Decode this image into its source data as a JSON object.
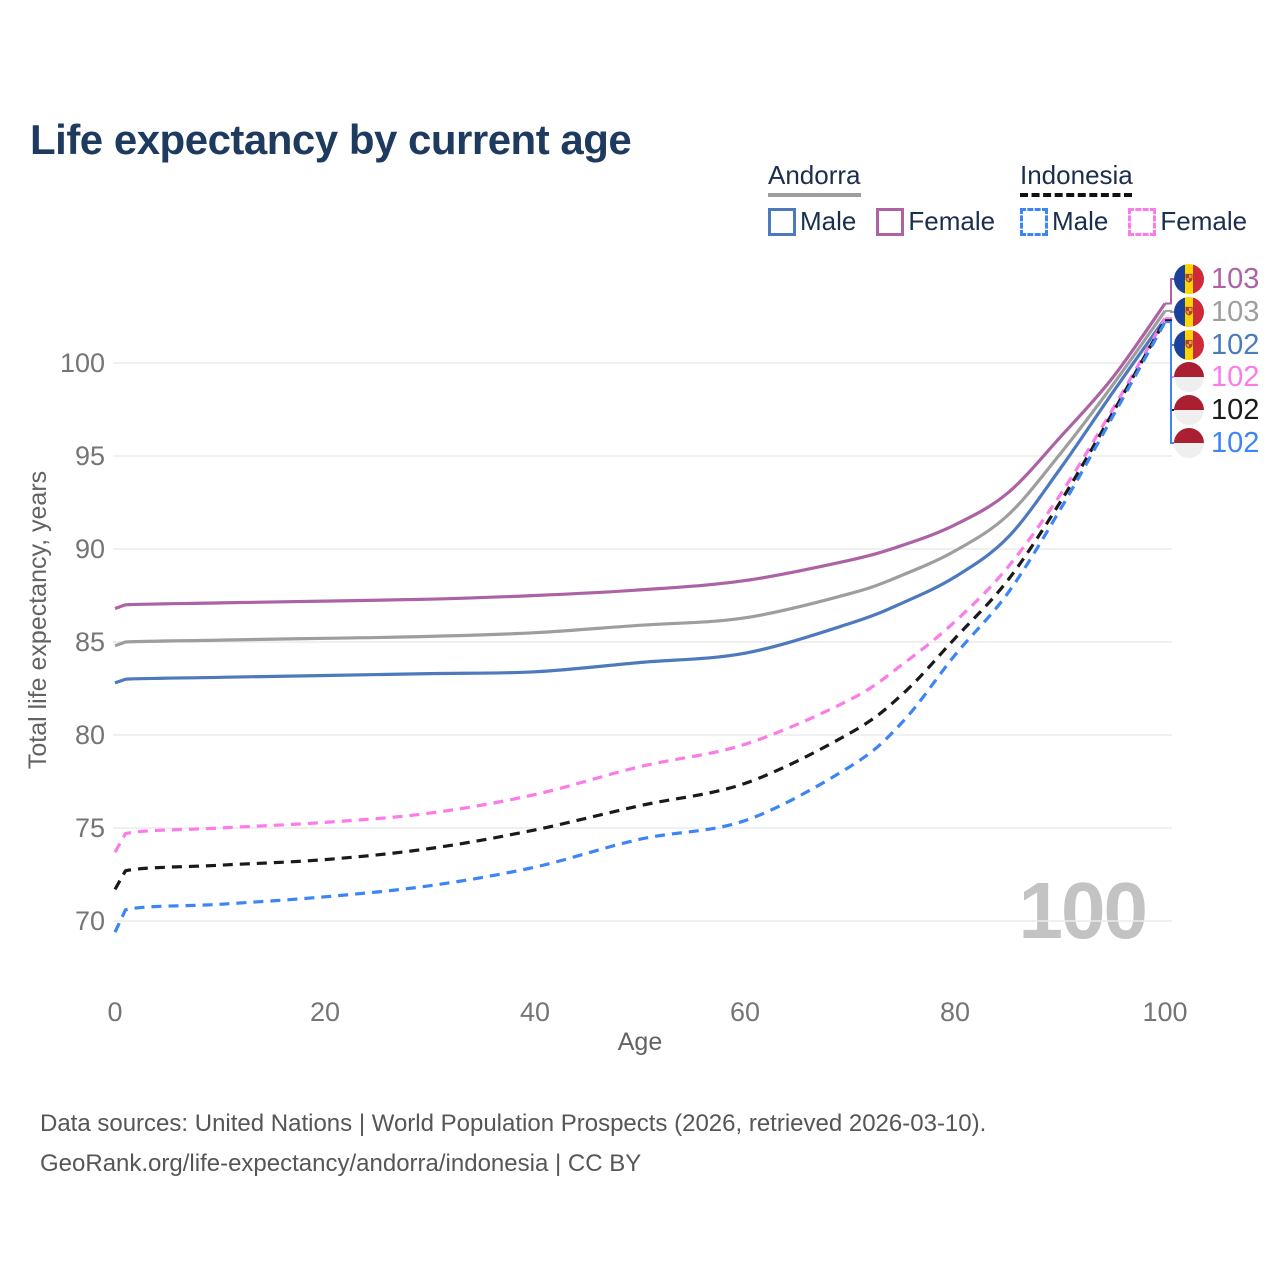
{
  "title": "Life expectancy by current age",
  "legend": {
    "groups": [
      {
        "country": "Andorra",
        "line_style": "solid",
        "underline_color": "#9e9e9e",
        "items": [
          {
            "label": "Male",
            "color": "#4d79bd"
          },
          {
            "label": "Female",
            "color": "#ac62a5"
          }
        ]
      },
      {
        "country": "Indonesia",
        "line_style": "dashed",
        "underline_color": "#111111",
        "items": [
          {
            "label": "Male",
            "color": "#3d85f6"
          },
          {
            "label": "Female",
            "color": "#fb7ce8"
          }
        ]
      }
    ]
  },
  "chart_data": {
    "type": "line",
    "title": "Life expectancy by current age",
    "xlabel": "Age",
    "ylabel": "Total life expectancy, years",
    "xlim": [
      0,
      100
    ],
    "ylim": [
      69,
      104
    ],
    "xticks": [
      0,
      20,
      40,
      60,
      80,
      100
    ],
    "yticks": [
      70,
      75,
      80,
      85,
      90,
      95,
      100
    ],
    "grid": true,
    "legend_position": "top-right",
    "watermark": "100",
    "x": [
      0,
      1,
      10,
      20,
      30,
      40,
      50,
      60,
      70,
      75,
      80,
      85,
      90,
      95,
      100
    ],
    "series": [
      {
        "name": "Andorra Female",
        "country": "Andorra",
        "sex": "Female",
        "color": "#ac62a5",
        "dashed": false,
        "values": [
          86.8,
          87.0,
          87.1,
          87.2,
          87.3,
          87.5,
          87.8,
          88.3,
          89.4,
          90.2,
          91.3,
          93.0,
          96.0,
          99.2,
          103.2
        ],
        "end_label": "103"
      },
      {
        "name": "Andorra Both sexes",
        "country": "Andorra",
        "sex": "Both sexes",
        "color": "#9e9e9e",
        "dashed": false,
        "values": [
          84.8,
          85.0,
          85.1,
          85.2,
          85.3,
          85.5,
          85.9,
          86.3,
          87.6,
          88.6,
          89.9,
          91.8,
          95.1,
          98.8,
          102.8
        ],
        "end_label": "103"
      },
      {
        "name": "Andorra Male",
        "country": "Andorra",
        "sex": "Male",
        "color": "#4d79bd",
        "dashed": false,
        "values": [
          82.8,
          83.0,
          83.1,
          83.2,
          83.3,
          83.4,
          83.9,
          84.4,
          86.0,
          87.1,
          88.5,
          90.6,
          94.3,
          98.4,
          102.4
        ],
        "end_label": "102"
      },
      {
        "name": "Indonesia Female",
        "country": "Indonesia",
        "sex": "Female",
        "color": "#fb7ce8",
        "dashed": true,
        "values": [
          73.7,
          74.7,
          75.0,
          75.3,
          75.8,
          76.8,
          78.3,
          79.5,
          81.9,
          83.8,
          86.1,
          89.0,
          92.9,
          97.5,
          102.4
        ],
        "end_label": "102"
      },
      {
        "name": "Indonesia Both sexes",
        "country": "Indonesia",
        "sex": "Both sexes",
        "color": "#1a1a1a",
        "dashed": true,
        "values": [
          71.7,
          72.7,
          73.0,
          73.3,
          73.9,
          74.9,
          76.2,
          77.4,
          80.1,
          82.2,
          85.2,
          88.3,
          92.5,
          97.3,
          102.3
        ],
        "end_label": "102"
      },
      {
        "name": "Indonesia Male",
        "country": "Indonesia",
        "sex": "Male",
        "color": "#3d85f6",
        "dashed": true,
        "values": [
          69.4,
          70.6,
          70.9,
          71.3,
          71.9,
          72.9,
          74.4,
          75.4,
          78.3,
          80.7,
          84.3,
          87.6,
          92.1,
          97.1,
          102.2
        ],
        "end_label": "102"
      }
    ],
    "end_labels": [
      {
        "value": "103",
        "color": "#ac62a5",
        "flag": "andorra"
      },
      {
        "value": "103",
        "color": "#9e9e9e",
        "flag": "andorra"
      },
      {
        "value": "102",
        "color": "#4d79bd",
        "flag": "andorra"
      },
      {
        "value": "102",
        "color": "#fb7ce8",
        "flag": "indonesia"
      },
      {
        "value": "102",
        "color": "#1a1a1a",
        "flag": "indonesia"
      },
      {
        "value": "102",
        "color": "#3d85f6",
        "flag": "indonesia"
      }
    ]
  },
  "footer": {
    "line1": "Data sources: United Nations | World Population Prospects (2026, retrieved 2026-03-10).",
    "line2": "GeoRank.org/life-expectancy/andorra/indonesia | CC BY"
  }
}
